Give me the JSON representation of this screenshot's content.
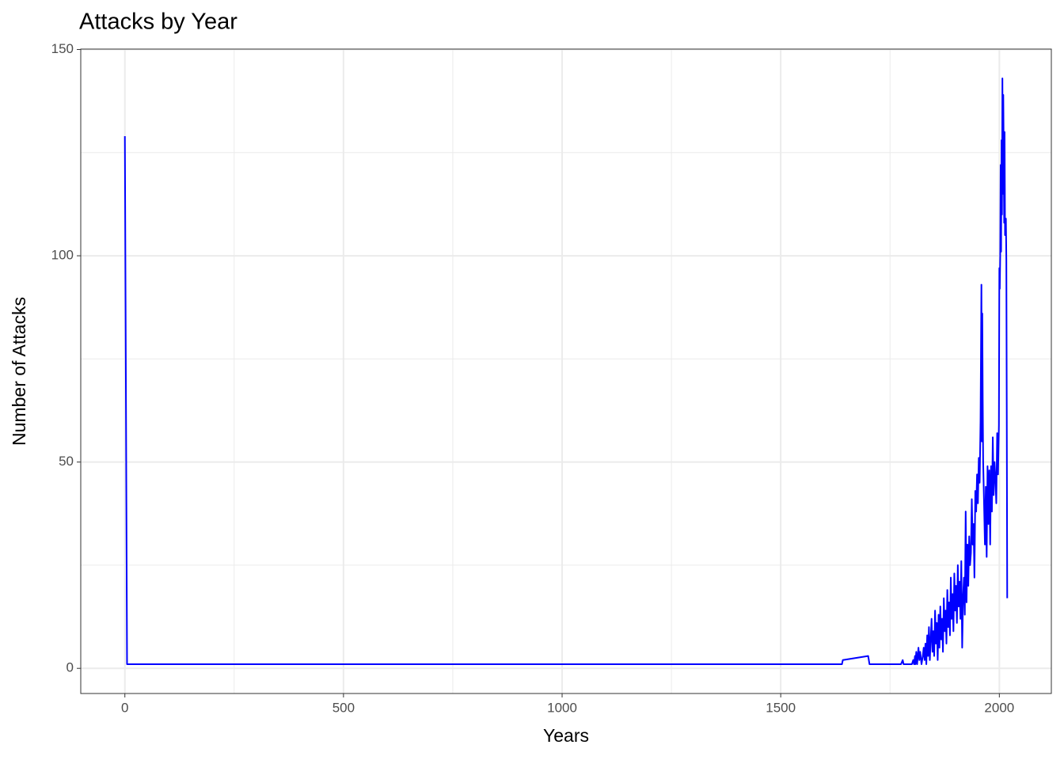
{
  "chart_data": {
    "type": "line",
    "title": "Attacks by Year",
    "x_label": "Years",
    "y_label": "Number of Attacks",
    "x": [
      0,
      5,
      1640,
      1642,
      1700,
      1703,
      1775,
      1779,
      1781,
      1800,
      1803,
      1805,
      1807,
      1808,
      1810,
      1812,
      1815,
      1817,
      1819,
      1822,
      1825,
      1827,
      1829,
      1831,
      1833,
      1835,
      1837,
      1839,
      1841,
      1843,
      1845,
      1847,
      1849,
      1851,
      1853,
      1855,
      1857,
      1859,
      1861,
      1863,
      1865,
      1867,
      1869,
      1871,
      1873,
      1875,
      1877,
      1879,
      1881,
      1883,
      1885,
      1887,
      1889,
      1891,
      1893,
      1895,
      1897,
      1899,
      1901,
      1903,
      1905,
      1907,
      1909,
      1911,
      1913,
      1915,
      1917,
      1919,
      1921,
      1923,
      1925,
      1927,
      1929,
      1931,
      1933,
      1935,
      1937,
      1939,
      1941,
      1943,
      1945,
      1947,
      1949,
      1951,
      1953,
      1955,
      1957,
      1959,
      1960,
      1961,
      1962,
      1963,
      1965,
      1967,
      1969,
      1971,
      1973,
      1975,
      1977,
      1979,
      1981,
      1983,
      1985,
      1987,
      1989,
      1991,
      1993,
      1995,
      1997,
      1999,
      2000,
      2001,
      2002,
      2003,
      2004,
      2005,
      2006,
      2007,
      2008,
      2009,
      2010,
      2011,
      2012,
      2013,
      2015,
      2016,
      2017,
      2018
    ],
    "series": [
      {
        "name": "Attacks",
        "color": "#0000ff",
        "values": [
          129,
          1,
          1,
          2,
          3,
          1,
          1,
          2,
          1,
          1,
          2,
          1,
          3,
          1,
          4,
          1,
          5,
          2,
          4,
          1,
          3,
          5,
          2,
          6,
          1,
          8,
          3,
          10,
          2,
          7,
          12,
          4,
          9,
          3,
          14,
          6,
          11,
          2,
          13,
          5,
          15,
          7,
          12,
          4,
          17,
          9,
          14,
          6,
          19,
          10,
          16,
          8,
          22,
          12,
          18,
          9,
          23,
          14,
          20,
          11,
          25,
          15,
          21,
          12,
          26,
          5,
          17,
          22,
          13,
          38,
          16,
          30,
          20,
          32,
          25,
          28,
          41,
          30,
          35,
          22,
          43,
          38,
          47,
          40,
          51,
          45,
          60,
          93,
          55,
          86,
          65,
          50,
          40,
          30,
          44,
          27,
          49,
          35,
          48,
          30,
          49,
          38,
          56,
          42,
          50,
          46,
          40,
          57,
          47,
          59,
          97,
          92,
          100,
          122,
          101,
          128,
          110,
          143,
          115,
          139,
          125,
          108,
          130,
          105,
          109,
          99,
          60,
          17
        ]
      }
    ],
    "xlim": [
      -100.9,
      2118.9
    ],
    "ylim": [
      -6.1,
      150.1
    ],
    "xticks": [
      0,
      500,
      1000,
      1500,
      2000
    ],
    "yticks": [
      0,
      50,
      100,
      150
    ],
    "minor_xticks": [
      250,
      750,
      1250,
      1750
    ],
    "minor_yticks": [
      25,
      75,
      125
    ],
    "grid": true
  }
}
